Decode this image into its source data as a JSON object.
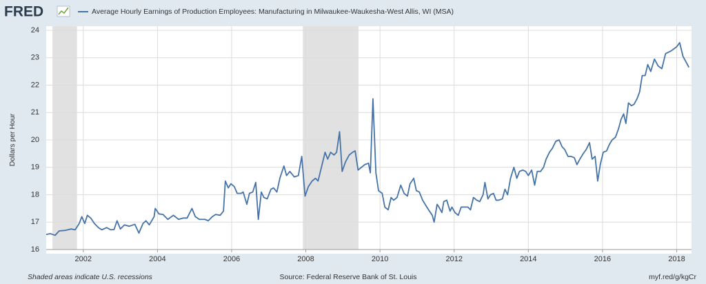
{
  "chart_data": {
    "type": "line",
    "brand": "FRED",
    "y_label": "Dollars per Hour",
    "footer_left": "Shaded areas indicate U.S. recessions",
    "footer_source": "Source: Federal Reserve Bank of St. Louis",
    "footer_link": "myf.red/g/kgCr",
    "xlim": [
      2001.0,
      2018.4
    ],
    "xticks": [
      2002,
      2004,
      2006,
      2008,
      2010,
      2012,
      2014,
      2016,
      2018
    ],
    "ylim": [
      16,
      24
    ],
    "yticks": [
      16,
      17,
      18,
      19,
      20,
      21,
      22,
      23,
      24
    ],
    "grid": true,
    "recessions": [
      [
        2001.17,
        2001.83
      ],
      [
        2007.92,
        2009.42
      ]
    ],
    "recession_color": "#e1e1e1",
    "x": [
      2001.0,
      2001.11,
      2001.24,
      2001.35,
      2001.52,
      2001.67,
      2001.78,
      2001.89,
      2001.96,
      2002.04,
      2002.11,
      2002.2,
      2002.3,
      2002.41,
      2002.5,
      2002.63,
      2002.74,
      2002.83,
      2002.91,
      2003.0,
      2003.11,
      2003.24,
      2003.39,
      2003.5,
      2003.61,
      2003.69,
      2003.78,
      2003.91,
      2003.94,
      2004.04,
      2004.15,
      2004.28,
      2004.43,
      2004.57,
      2004.7,
      2004.8,
      2004.93,
      2005.02,
      2005.13,
      2005.28,
      2005.37,
      2005.48,
      2005.57,
      2005.69,
      2005.78,
      2005.83,
      2005.91,
      2005.98,
      2006.07,
      2006.15,
      2006.26,
      2006.31,
      2006.41,
      2006.48,
      2006.57,
      2006.65,
      2006.72,
      2006.8,
      2006.87,
      2006.96,
      2007.06,
      2007.13,
      2007.22,
      2007.3,
      2007.41,
      2007.48,
      2007.57,
      2007.69,
      2007.8,
      2007.89,
      2007.98,
      2008.07,
      2008.17,
      2008.26,
      2008.33,
      2008.43,
      2008.52,
      2008.59,
      2008.67,
      2008.76,
      2008.83,
      2008.91,
      2008.98,
      2009.07,
      2009.17,
      2009.26,
      2009.33,
      2009.41,
      2009.5,
      2009.59,
      2009.69,
      2009.74,
      2009.81,
      2009.89,
      2009.96,
      2010.06,
      2010.13,
      2010.22,
      2010.3,
      2010.37,
      2010.46,
      2010.56,
      2010.65,
      2010.74,
      2010.81,
      2010.91,
      2010.98,
      2011.06,
      2011.15,
      2011.24,
      2011.31,
      2011.41,
      2011.46,
      2011.54,
      2011.59,
      2011.67,
      2011.72,
      2011.8,
      2011.89,
      2011.94,
      2012.02,
      2012.11,
      2012.19,
      2012.28,
      2012.37,
      2012.44,
      2012.52,
      2012.61,
      2012.69,
      2012.78,
      2012.83,
      2012.91,
      2012.98,
      2013.06,
      2013.13,
      2013.2,
      2013.3,
      2013.37,
      2013.44,
      2013.52,
      2013.61,
      2013.69,
      2013.76,
      2013.85,
      2013.93,
      2014.0,
      2014.09,
      2014.17,
      2014.24,
      2014.33,
      2014.41,
      2014.48,
      2014.57,
      2014.65,
      2014.74,
      2014.83,
      2014.91,
      2014.98,
      2015.07,
      2015.15,
      2015.24,
      2015.31,
      2015.39,
      2015.48,
      2015.56,
      2015.65,
      2015.72,
      2015.8,
      2015.87,
      2015.94,
      2016.02,
      2016.11,
      2016.19,
      2016.26,
      2016.35,
      2016.43,
      2016.5,
      2016.57,
      2016.63,
      2016.7,
      2016.78,
      2016.85,
      2016.93,
      2017.0,
      2017.07,
      2017.15,
      2017.22,
      2017.3,
      2017.4,
      2017.5,
      2017.6,
      2017.7,
      2017.85,
      2018.0,
      2018.08,
      2018.17,
      2018.25,
      2018.33
    ],
    "series": [
      {
        "name": "Average Hourly Earnings of Production Employees: Manufacturing in Milwaukee-Waukesha-West Allis, WI (MSA)",
        "color": "#4572a7",
        "values": [
          16.55,
          16.58,
          16.52,
          16.68,
          16.7,
          16.75,
          16.72,
          16.95,
          17.2,
          16.95,
          17.25,
          17.15,
          16.95,
          16.8,
          16.72,
          16.8,
          16.72,
          16.73,
          17.05,
          16.75,
          16.9,
          16.85,
          16.92,
          16.6,
          16.95,
          17.05,
          16.9,
          17.2,
          17.5,
          17.3,
          17.28,
          17.1,
          17.25,
          17.1,
          17.15,
          17.15,
          17.5,
          17.2,
          17.1,
          17.1,
          17.05,
          17.2,
          17.28,
          17.25,
          17.4,
          18.5,
          18.25,
          18.4,
          18.3,
          18.05,
          18.05,
          18.1,
          17.65,
          18.05,
          18.1,
          18.45,
          17.1,
          18.1,
          17.9,
          17.85,
          18.2,
          18.25,
          18.1,
          18.6,
          19.05,
          18.7,
          18.85,
          18.65,
          18.7,
          19.4,
          17.95,
          18.3,
          18.5,
          18.6,
          18.5,
          19.05,
          19.55,
          19.3,
          19.55,
          19.45,
          19.55,
          20.3,
          18.85,
          19.2,
          19.45,
          19.55,
          19.6,
          18.9,
          19.0,
          19.1,
          19.15,
          18.8,
          21.5,
          18.8,
          18.15,
          18.05,
          17.55,
          17.45,
          17.9,
          17.8,
          17.9,
          18.35,
          18.05,
          17.95,
          18.4,
          18.6,
          18.15,
          18.1,
          17.8,
          17.6,
          17.45,
          17.25,
          17.0,
          17.65,
          17.55,
          17.35,
          17.75,
          17.8,
          17.4,
          17.55,
          17.35,
          17.25,
          17.55,
          17.55,
          17.55,
          17.45,
          17.9,
          17.8,
          17.75,
          18.0,
          18.45,
          17.85,
          18.0,
          18.05,
          17.8,
          17.8,
          17.85,
          18.2,
          18.0,
          18.6,
          19.0,
          18.6,
          18.85,
          18.9,
          18.85,
          18.7,
          18.9,
          18.35,
          18.85,
          18.85,
          19.0,
          19.3,
          19.55,
          19.7,
          19.95,
          20.0,
          19.75,
          19.65,
          19.4,
          19.4,
          19.35,
          19.1,
          19.3,
          19.5,
          19.65,
          19.9,
          19.3,
          19.4,
          18.5,
          19.1,
          19.55,
          19.6,
          19.85,
          20.0,
          20.1,
          20.4,
          20.75,
          20.95,
          20.6,
          21.35,
          21.25,
          21.3,
          21.5,
          21.75,
          22.35,
          22.35,
          22.75,
          22.5,
          22.95,
          22.7,
          22.6,
          23.15,
          23.25,
          23.4,
          23.55,
          23.05,
          22.85,
          22.65
        ]
      }
    ]
  }
}
